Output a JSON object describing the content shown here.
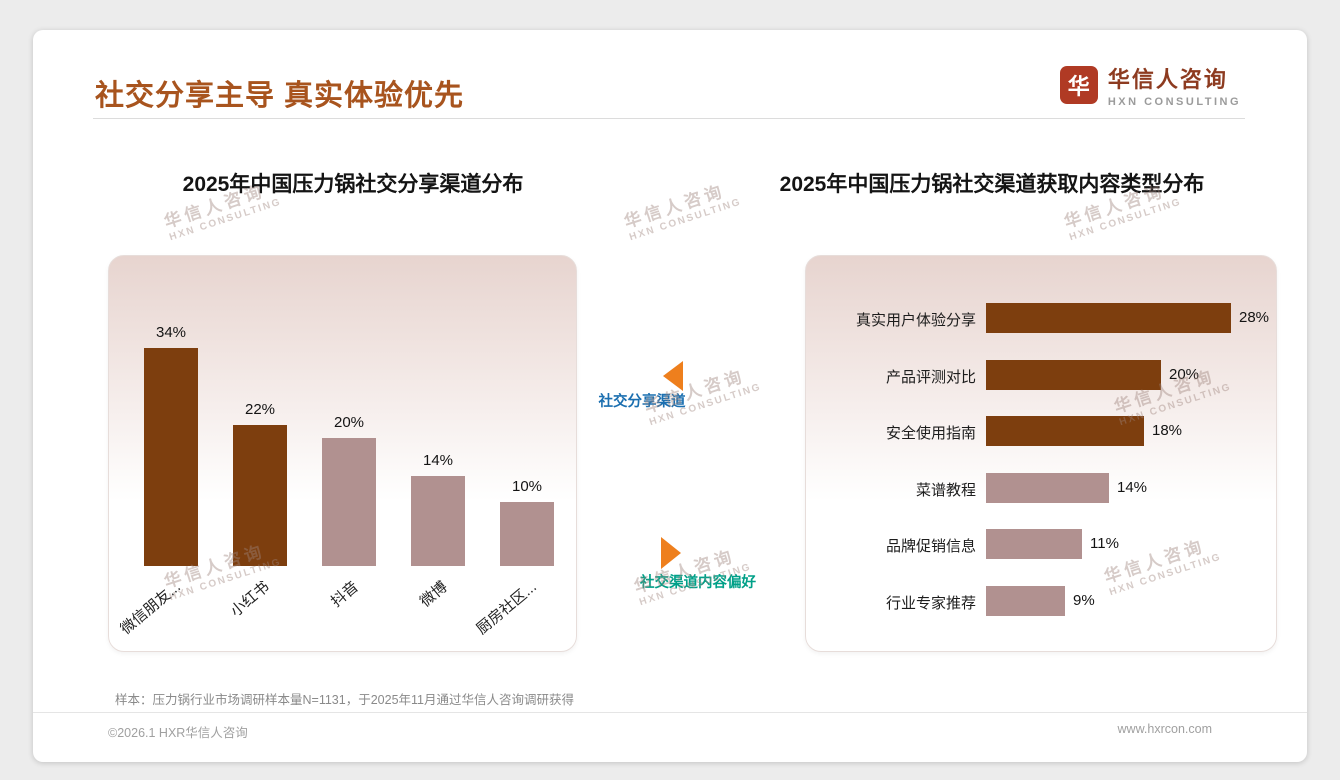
{
  "page": {
    "title": "社交分享主导 真实体验优先",
    "logo": {
      "name": "华信人咨询",
      "tagline": "HXN CONSULTING",
      "mark": "华"
    },
    "watermark": {
      "line1": "华信人咨询",
      "line2": "HXN CONSULTING"
    },
    "source_note": "样本：压力锅行业市场调研样本量N=1131，于2025年11月通过华信人咨询调研获得",
    "footer": {
      "left": "©2026.1 HXR华信人咨询",
      "right": "www.hxrcon.com"
    }
  },
  "annotations": {
    "share_channels_label": "社交分享渠道",
    "content_preference_label": "社交渠道内容偏好"
  },
  "colors": {
    "title": "#A8541E",
    "bar_dark": "#7D3E0E",
    "bar_light": "#B19190",
    "arrow_orange": "#EE7F1D",
    "share_label_blue": "#1B6FB0",
    "content_label_teal": "#00A088"
  },
  "chart_data": [
    {
      "type": "bar",
      "orientation": "vertical",
      "title": "2025年中国压力锅社交分享渠道分布",
      "categories": [
        "微信朋友...",
        "小红书",
        "抖音",
        "微博",
        "厨房社区..."
      ],
      "values": [
        34,
        22,
        20,
        14,
        10
      ],
      "value_labels": [
        "34%",
        "22%",
        "20%",
        "14%",
        "10%"
      ],
      "unit": "%",
      "ylim": [
        0,
        34
      ],
      "grid": false,
      "legend": "none",
      "bar_palette": [
        "dark",
        "dark",
        "light",
        "light",
        "light"
      ]
    },
    {
      "type": "bar",
      "orientation": "horizontal",
      "title": "2025年中国压力锅社交渠道获取内容类型分布",
      "categories": [
        "真实用户体验分享",
        "产品评测对比",
        "安全使用指南",
        "菜谱教程",
        "品牌促销信息",
        "行业专家推荐"
      ],
      "values": [
        28,
        20,
        18,
        14,
        11,
        9
      ],
      "value_labels": [
        "28%",
        "20%",
        "18%",
        "14%",
        "11%",
        "9%"
      ],
      "unit": "%",
      "xlim": [
        0,
        28
      ],
      "grid": false,
      "legend": "none",
      "bar_palette": [
        "dark",
        "dark",
        "dark",
        "light",
        "light",
        "light"
      ]
    }
  ]
}
